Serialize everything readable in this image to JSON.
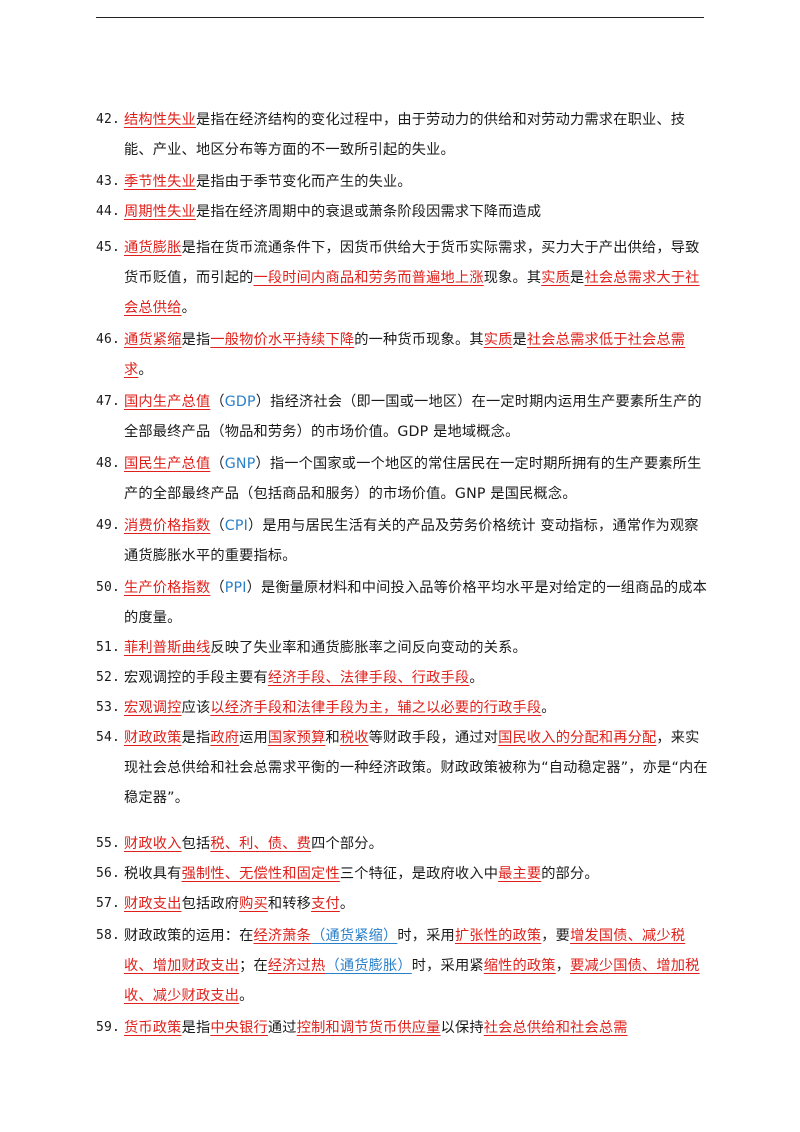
{
  "items": [
    {
      "num": "42.",
      "segs": [
        {
          "t": "结构性失业",
          "s": "r"
        },
        {
          "t": "是指在经济结构的变化过程中，由于劳动力的供给和对劳动力需求在职业、技能、产业、地区分布等方面的不一致所引起的失业。"
        }
      ]
    },
    {
      "num": "43.",
      "segs": [
        {
          "t": "季节性失业",
          "s": "r"
        },
        {
          "t": "是指由于季节变化而产生的失业。"
        }
      ]
    },
    {
      "num": "44.",
      "segs": [
        {
          "t": "周期性失业",
          "s": "r"
        },
        {
          "t": "是指在经济周期中的衰退或萧条阶段因需求下降而造成"
        }
      ]
    },
    {
      "num": "45.",
      "segs": [
        {
          "t": "通货膨胀",
          "s": "r"
        },
        {
          "t": "是指在货币流通条件下，因货币供给大于货币实际需求，买力大于产出供给，导致货币贬值，而引起的"
        },
        {
          "t": "一段时间内商品和劳务而普遍地上涨",
          "s": "r"
        },
        {
          "t": "现象。其"
        },
        {
          "t": "实质",
          "s": "r"
        },
        {
          "t": "是"
        },
        {
          "t": "社会总需求大于社会总供给",
          "s": "r"
        },
        {
          "t": "。"
        }
      ]
    },
    {
      "num": "46.",
      "segs": [
        {
          "t": "通货紧缩",
          "s": "r"
        },
        {
          "t": "是指"
        },
        {
          "t": "一般物价水平持续下降",
          "s": "r"
        },
        {
          "t": "的一种货币现象。其"
        },
        {
          "t": "实质",
          "s": "r"
        },
        {
          "t": "是"
        },
        {
          "t": "社会总需求低于社会总需求",
          "s": "r"
        },
        {
          "t": "。"
        }
      ]
    },
    {
      "num": "47.",
      "segs": [
        {
          "t": "国内生产总值",
          "s": "r"
        },
        {
          "t": "（"
        },
        {
          "t": "GDP",
          "s": "b"
        },
        {
          "t": "）指经济社会（即一国或一地区）在一定时期内运用生产要素所生产的全部最终产品（物品和劳务）的市场价值。GDP 是地域概念。"
        }
      ]
    },
    {
      "num": "48.",
      "segs": [
        {
          "t": "国民生产总值",
          "s": "r"
        },
        {
          "t": "（"
        },
        {
          "t": "GNP",
          "s": "b"
        },
        {
          "t": "）指一个国家或一个地区的常住居民在一定时期所拥有的生产要素所生产的全部最终产品（包括商品和服务）的市场价值。GNP 是国民概念。"
        }
      ]
    },
    {
      "num": "49.",
      "segs": [
        {
          "t": "消费价格指数",
          "s": "r"
        },
        {
          "t": "（"
        },
        {
          "t": "CPI",
          "s": "b"
        },
        {
          "t": "）是用与居民生活有关的产品及劳务价格统计 变动指标，通常作为观察通货膨胀水平的重要指标。"
        }
      ]
    },
    {
      "num": "50.",
      "segs": [
        {
          "t": "生产价格指数",
          "s": "r"
        },
        {
          "t": "（"
        },
        {
          "t": "PPI",
          "s": "b"
        },
        {
          "t": "）是衡量原材料和中间投入品等价格平均水平是对给定的一组商品的成本的度量。"
        }
      ]
    },
    {
      "num": "51.",
      "segs": [
        {
          "t": "菲利普斯曲线",
          "s": "r"
        },
        {
          "t": "反映了失业率和通货膨胀率之间反向变动的关系。"
        }
      ]
    },
    {
      "num": "52.",
      "segs": [
        {
          "t": "宏观调控的手段主要有"
        },
        {
          "t": "经济手段、法律手段、行政手段",
          "s": "r"
        },
        {
          "t": "。"
        }
      ]
    },
    {
      "num": "53.",
      "segs": [
        {
          "t": "宏观调控",
          "s": "r"
        },
        {
          "t": "应该"
        },
        {
          "t": "以经济手段和法律手段为主，辅之以必要的行政手段",
          "s": "r"
        },
        {
          "t": "。"
        }
      ]
    },
    {
      "num": "54.",
      "segs": [
        {
          "t": "财政政策",
          "s": "r"
        },
        {
          "t": "是指"
        },
        {
          "t": "政府",
          "s": "r"
        },
        {
          "t": "运用"
        },
        {
          "t": "国家预算",
          "s": "r"
        },
        {
          "t": "和"
        },
        {
          "t": "税收",
          "s": "r"
        },
        {
          "t": "等财政手段，通过对"
        },
        {
          "t": "国民收入的分配和再分配",
          "s": "r"
        },
        {
          "t": "，来实现社会总供给和社会总需求平衡的一种经济政策。财政政策被称为“自动稳定器”，亦是“内在稳定器”。"
        }
      ]
    },
    {
      "num": "55.",
      "segs": [
        {
          "t": "财政收入",
          "s": "r"
        },
        {
          "t": "包括"
        },
        {
          "t": "税、利、债、费",
          "s": "r"
        },
        {
          "t": "四个部分。"
        }
      ]
    },
    {
      "num": "56.",
      "segs": [
        {
          "t": "税收具有"
        },
        {
          "t": "强制性、无偿性和固定性",
          "s": "r"
        },
        {
          "t": "三个特征，是政府收入中"
        },
        {
          "t": "最主要",
          "s": "r"
        },
        {
          "t": "的部分。"
        }
      ]
    },
    {
      "num": "57.",
      "segs": [
        {
          "t": "财政支出",
          "s": "r"
        },
        {
          "t": "包括政府"
        },
        {
          "t": "购买",
          "s": "r"
        },
        {
          "t": "和转移"
        },
        {
          "t": "支付",
          "s": "r"
        },
        {
          "t": "。"
        }
      ]
    },
    {
      "num": "58.",
      "segs": [
        {
          "t": "财政政策的运用：在"
        },
        {
          "t": "经济萧条",
          "s": "r"
        },
        {
          "t": "（通货紧缩）",
          "s": "bu"
        },
        {
          "t": "时，采用"
        },
        {
          "t": "扩张性的政策",
          "s": "r"
        },
        {
          "t": "，要"
        },
        {
          "t": "增发国债、减少税收、增加财政支出",
          "s": "r"
        },
        {
          "t": "；在"
        },
        {
          "t": "经济过热",
          "s": "r"
        },
        {
          "t": "（通货膨胀）",
          "s": "bu"
        },
        {
          "t": "时，采用紧"
        },
        {
          "t": "缩性的政策",
          "s": "r"
        },
        {
          "t": "，"
        },
        {
          "t": "要减少国债、增加税收、减少财政支出",
          "s": "r"
        },
        {
          "t": "。"
        }
      ]
    },
    {
      "num": "59.",
      "segs": [
        {
          "t": "货币政策",
          "s": "r"
        },
        {
          "t": "是指"
        },
        {
          "t": "中央银行",
          "s": "r"
        },
        {
          "t": "通过"
        },
        {
          "t": "控制和调节货币供应量",
          "s": "r"
        },
        {
          "t": "以保持"
        },
        {
          "t": "社会总供给和社会总需",
          "s": "r"
        }
      ]
    }
  ]
}
